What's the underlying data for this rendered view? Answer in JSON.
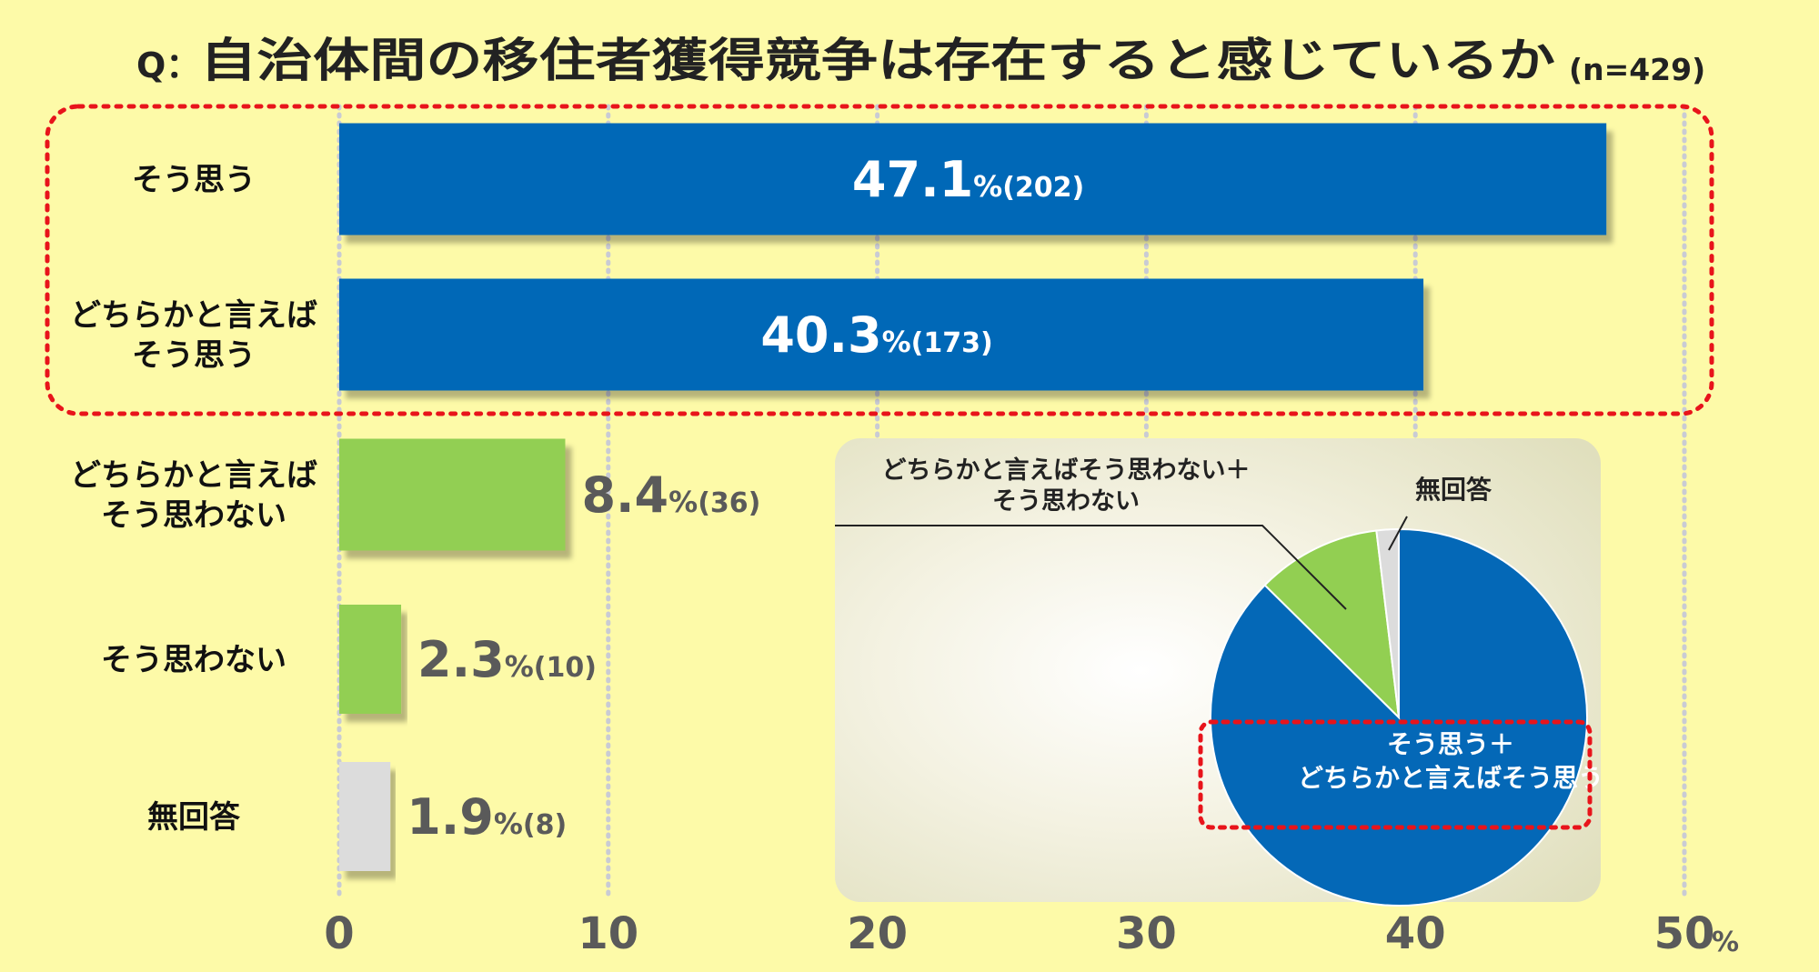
{
  "title": {
    "q_prefix": "Q：",
    "text": "自治体間の移住者獲得競争は存在すると感じているか",
    "n_label": "(n=429)"
  },
  "colors": {
    "background": "#fdfaa8",
    "agree": "#0468b7",
    "disagree": "#92cf52",
    "no_answer": "#dcdcdc",
    "highlight": "#e8141b",
    "value_text_dark": "#5a5a5a",
    "grid": "#c9cbd4"
  },
  "chart_data": [
    {
      "type": "bar",
      "orientation": "horizontal",
      "categories": [
        [
          "そう思う"
        ],
        [
          "どちらかと言えば",
          "そう思う"
        ],
        [
          "どちらかと言えば",
          "そう思わない"
        ],
        [
          "そう思わない"
        ],
        [
          "無回答"
        ]
      ],
      "values": [
        47.1,
        40.3,
        8.4,
        2.3,
        1.9
      ],
      "counts": [
        "(202)",
        "(173)",
        "(36)",
        "(10)",
        "(8)"
      ],
      "value_labels": [
        "47.1",
        "40.3",
        "8.4",
        "2.3",
        "1.9"
      ],
      "percent_suffix": "%",
      "bar_colors": [
        "#0468b7",
        "#0468b7",
        "#92cf52",
        "#92cf52",
        "#dcdcdc"
      ],
      "label_inside": [
        true,
        true,
        false,
        false,
        false
      ],
      "xlim": [
        0,
        50
      ],
      "xticks": [
        "0",
        "10",
        "20",
        "30",
        "40",
        "50"
      ],
      "xtick_suffix": "%",
      "grid": true,
      "highlighted_categories": [
        0,
        1
      ]
    },
    {
      "type": "pie",
      "slices": [
        {
          "label": [
            "そう思う＋",
            "どちらかと言えばそう思う"
          ],
          "value": 87.4,
          "color": "#0468b7"
        },
        {
          "label": [
            "どちらかと言えばそう思わない＋",
            "そう思わない"
          ],
          "value": 10.7,
          "color": "#92cf52"
        },
        {
          "label": [
            "無回答"
          ],
          "value": 1.9,
          "color": "#dcdcdc"
        }
      ],
      "highlighted_slice": 0
    }
  ]
}
